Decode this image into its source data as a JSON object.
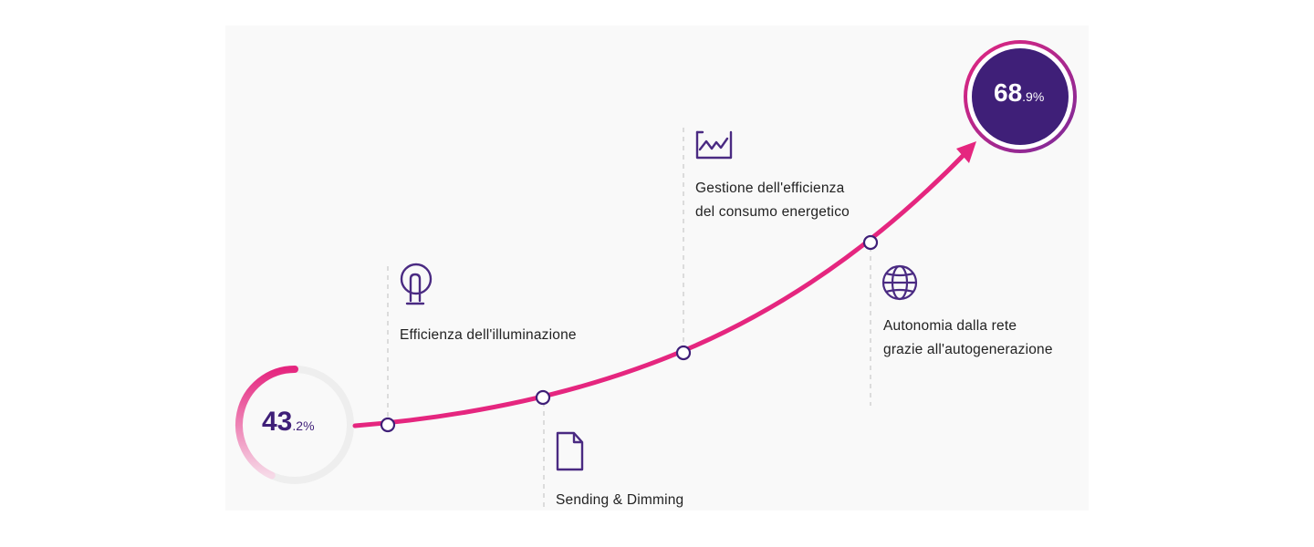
{
  "start": {
    "whole": "43",
    "decimal": ".2",
    "unit": "%",
    "value": 43.2
  },
  "end": {
    "whole": "68",
    "decimal": ".9",
    "unit": "%",
    "value": 68.9
  },
  "steps": [
    {
      "label": "Efficienza dell'illuminazione",
      "icon": "touch-lightbulb-icon"
    },
    {
      "label": "Sending & Dimming",
      "icon": "document-icon"
    },
    {
      "label_lines": [
        "Gestione dell'efficienza",
        "del consumo energetico"
      ],
      "icon": "chart-monitor-icon"
    },
    {
      "label_lines": [
        "Autonomia dalla rete",
        "grazie all'autogenerazione"
      ],
      "icon": "globe-icon"
    }
  ],
  "colors": {
    "accent": "#e5267f",
    "purple": "#3f1f78",
    "icon": "#4a2a82",
    "ring_bg": "#eeeeee",
    "dash": "#c9c9c9"
  }
}
